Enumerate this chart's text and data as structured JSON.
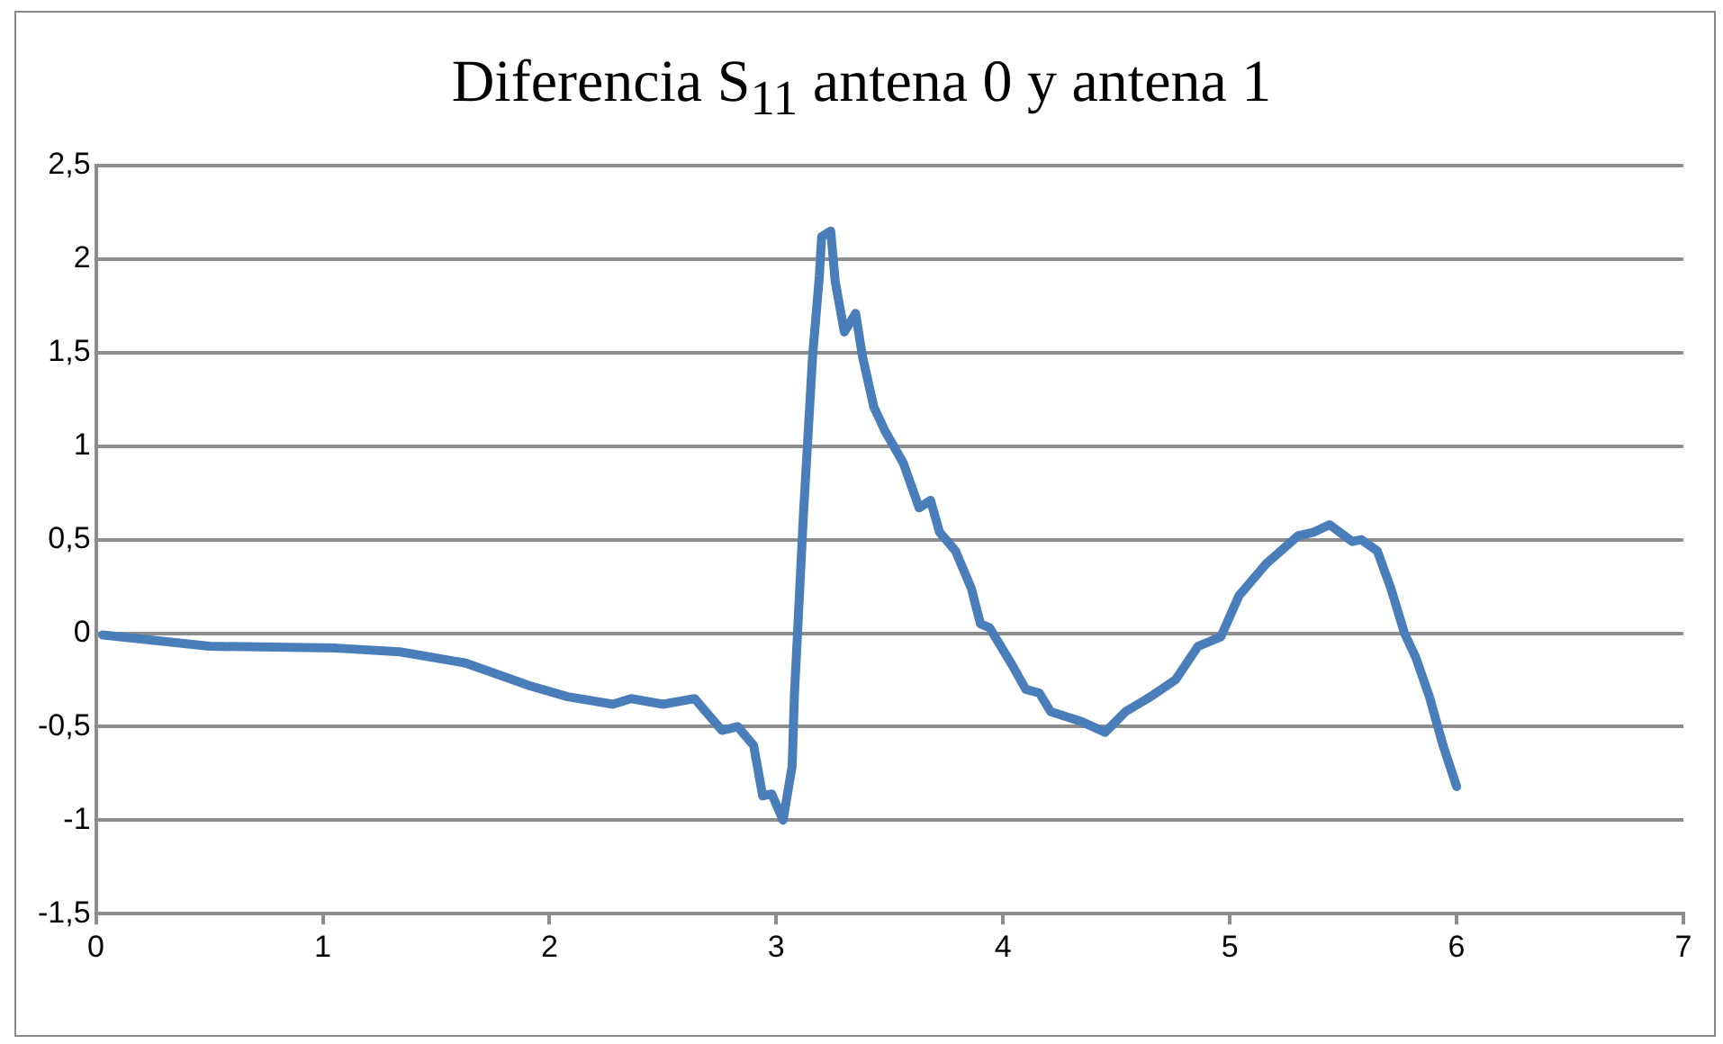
{
  "chart_data": {
    "type": "line",
    "title": "Diferencia S$_{11}$ antena 0 y antena 1",
    "x": [
      0.03,
      0.5,
      1.06,
      1.34,
      1.63,
      1.91,
      2.08,
      2.28,
      2.36,
      2.5,
      2.64,
      2.76,
      2.83,
      2.9,
      2.94,
      2.98,
      3.03,
      3.07,
      3.08,
      3.12,
      3.16,
      3.19,
      3.2,
      3.24,
      3.26,
      3.3,
      3.35,
      3.38,
      3.43,
      3.48,
      3.56,
      3.63,
      3.68,
      3.72,
      3.79,
      3.86,
      3.9,
      3.94,
      4.04,
      4.1,
      4.16,
      4.21,
      4.34,
      4.45,
      4.54,
      4.65,
      4.76,
      4.86,
      4.96,
      5.04,
      5.16,
      5.3,
      5.37,
      5.44,
      5.54,
      5.58,
      5.65,
      5.71,
      5.77,
      5.82,
      5.88,
      5.94,
      6.0
    ],
    "series": [
      {
        "color": "#4a7ebb",
        "values": [
          -0.01,
          -0.07,
          -0.08,
          -0.1,
          -0.16,
          -0.28,
          -0.34,
          -0.38,
          -0.35,
          -0.38,
          -0.35,
          -0.52,
          -0.5,
          -0.6,
          -0.87,
          -0.86,
          -1.0,
          -0.71,
          -0.33,
          0.64,
          1.48,
          1.91,
          2.12,
          2.15,
          1.88,
          1.61,
          1.71,
          1.48,
          1.21,
          1.08,
          0.91,
          0.67,
          0.71,
          0.54,
          0.44,
          0.24,
          0.05,
          0.03,
          -0.17,
          -0.3,
          -0.32,
          -0.42,
          -0.47,
          -0.53,
          -0.42,
          -0.34,
          -0.25,
          -0.07,
          -0.02,
          0.2,
          0.37,
          0.52,
          0.54,
          0.58,
          0.49,
          0.5,
          0.44,
          0.24,
          0.0,
          -0.13,
          -0.34,
          -0.6,
          -0.82
        ]
      }
    ],
    "xlim": [
      0,
      7
    ],
    "xticks": [
      0,
      1,
      2,
      3,
      4,
      5,
      6,
      7
    ],
    "ylim": [
      -1.5,
      2.5
    ],
    "yticks": [
      {
        "value": -1.5,
        "label": "-1,5"
      },
      -1,
      {
        "value": -0.5,
        "label": "-0,5"
      },
      0,
      {
        "value": 0.5,
        "label": "0,5"
      },
      1,
      {
        "value": 1.5,
        "label": "1,5"
      },
      2,
      {
        "value": 2.5,
        "label": "2,5"
      }
    ],
    "grid": "y",
    "marker": "none",
    "line_style": "solid"
  }
}
